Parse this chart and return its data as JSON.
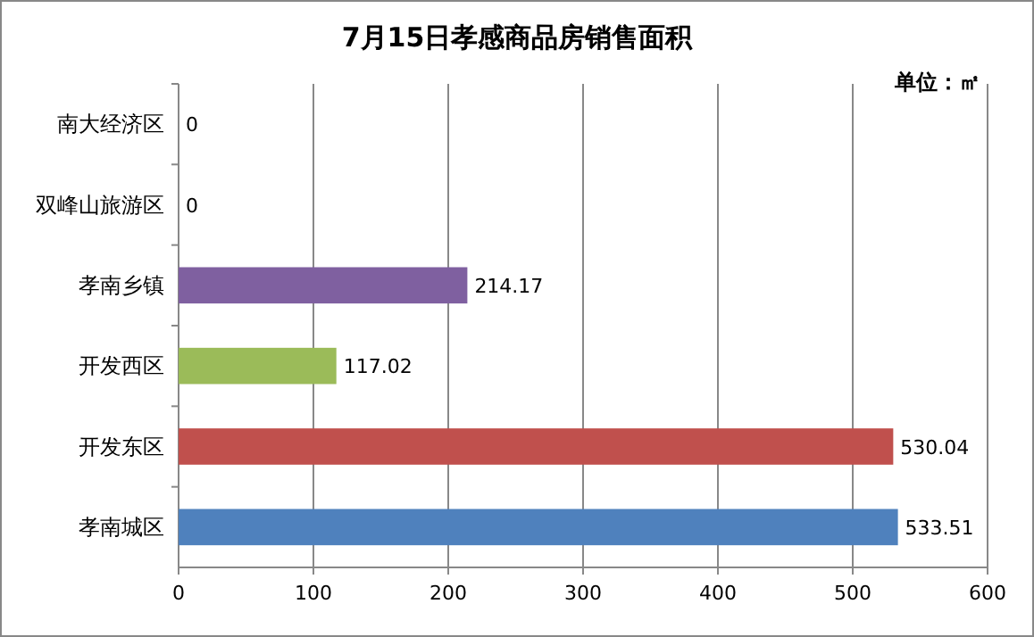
{
  "chart_data": {
    "type": "bar",
    "orientation": "horizontal",
    "title": "7月15日孝感商品房销售面积",
    "annotations": [
      "单位：㎡"
    ],
    "categories": [
      "南大经济区",
      "双峰山旅游区",
      "孝南乡镇",
      "开发西区",
      "开发东区",
      "孝南城区"
    ],
    "values": [
      0,
      0,
      214.17,
      117.02,
      530.04,
      533.51
    ],
    "colors": [
      "#4f81bd",
      "#c0504d",
      "#7f60a0",
      "#9bbb59",
      "#c0504d",
      "#4f81bd"
    ],
    "xlim": [
      0,
      600
    ],
    "xticks": [
      0,
      100,
      200,
      300,
      400,
      500,
      600
    ],
    "grid": "x",
    "data_labels": true
  }
}
